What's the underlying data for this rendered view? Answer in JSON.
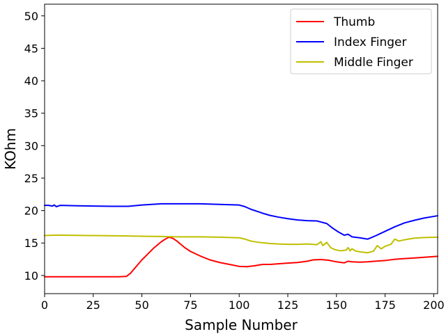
{
  "chart_data": {
    "type": "line",
    "title": "",
    "xlabel": "Sample Number",
    "ylabel": "KOhm",
    "xlim": [
      0,
      202
    ],
    "ylim": [
      7.2,
      51.8
    ],
    "xticks": [
      0,
      25,
      50,
      75,
      100,
      125,
      150,
      175,
      200
    ],
    "yticks": [
      10,
      15,
      20,
      25,
      30,
      35,
      40,
      45,
      50
    ],
    "grid": false,
    "legend": "top-right",
    "series": [
      {
        "name": "Thumb",
        "color": "#ff0000",
        "points": [
          [
            0,
            9.8
          ],
          [
            10,
            9.8
          ],
          [
            20,
            9.8
          ],
          [
            30,
            9.8
          ],
          [
            38,
            9.8
          ],
          [
            42,
            9.85
          ],
          [
            44,
            10.3
          ],
          [
            46,
            11.0
          ],
          [
            48,
            11.7
          ],
          [
            50,
            12.4
          ],
          [
            52,
            13.0
          ],
          [
            54,
            13.6
          ],
          [
            56,
            14.2
          ],
          [
            58,
            14.7
          ],
          [
            60,
            15.2
          ],
          [
            62,
            15.6
          ],
          [
            64,
            15.9
          ],
          [
            66,
            15.7
          ],
          [
            68,
            15.3
          ],
          [
            70,
            14.8
          ],
          [
            72,
            14.3
          ],
          [
            75,
            13.7
          ],
          [
            80,
            13.0
          ],
          [
            85,
            12.4
          ],
          [
            90,
            12.0
          ],
          [
            95,
            11.7
          ],
          [
            100,
            11.4
          ],
          [
            104,
            11.35
          ],
          [
            108,
            11.5
          ],
          [
            112,
            11.7
          ],
          [
            116,
            11.7
          ],
          [
            120,
            11.8
          ],
          [
            125,
            11.9
          ],
          [
            130,
            12.0
          ],
          [
            135,
            12.2
          ],
          [
            138,
            12.4
          ],
          [
            142,
            12.45
          ],
          [
            146,
            12.35
          ],
          [
            150,
            12.1
          ],
          [
            154,
            11.95
          ],
          [
            156,
            12.2
          ],
          [
            158,
            12.1
          ],
          [
            162,
            12.05
          ],
          [
            166,
            12.1
          ],
          [
            170,
            12.2
          ],
          [
            175,
            12.3
          ],
          [
            180,
            12.5
          ],
          [
            185,
            12.6
          ],
          [
            190,
            12.7
          ],
          [
            195,
            12.8
          ],
          [
            202,
            12.95
          ]
        ]
      },
      {
        "name": "Index Finger",
        "color": "#0000ff",
        "points": [
          [
            0,
            20.8
          ],
          [
            2,
            20.8
          ],
          [
            4,
            20.7
          ],
          [
            5,
            20.85
          ],
          [
            6,
            20.6
          ],
          [
            8,
            20.8
          ],
          [
            15,
            20.75
          ],
          [
            25,
            20.7
          ],
          [
            35,
            20.65
          ],
          [
            43,
            20.65
          ],
          [
            50,
            20.85
          ],
          [
            55,
            20.95
          ],
          [
            60,
            21.05
          ],
          [
            65,
            21.05
          ],
          [
            70,
            21.05
          ],
          [
            75,
            21.05
          ],
          [
            80,
            21.05
          ],
          [
            90,
            20.95
          ],
          [
            100,
            20.85
          ],
          [
            103,
            20.6
          ],
          [
            106,
            20.2
          ],
          [
            110,
            19.8
          ],
          [
            113,
            19.5
          ],
          [
            116,
            19.25
          ],
          [
            120,
            19.0
          ],
          [
            125,
            18.75
          ],
          [
            130,
            18.55
          ],
          [
            135,
            18.45
          ],
          [
            140,
            18.4
          ],
          [
            145,
            18.0
          ],
          [
            148,
            17.3
          ],
          [
            151,
            16.7
          ],
          [
            154,
            16.2
          ],
          [
            156,
            16.35
          ],
          [
            158,
            15.95
          ],
          [
            162,
            15.8
          ],
          [
            166,
            15.6
          ],
          [
            170,
            16.1
          ],
          [
            175,
            16.8
          ],
          [
            180,
            17.5
          ],
          [
            185,
            18.1
          ],
          [
            190,
            18.5
          ],
          [
            195,
            18.85
          ],
          [
            202,
            19.2
          ]
        ]
      },
      {
        "name": "Middle Finger",
        "color": "#bfbf00",
        "points": [
          [
            0,
            16.15
          ],
          [
            5,
            16.2
          ],
          [
            10,
            16.2
          ],
          [
            25,
            16.15
          ],
          [
            40,
            16.1
          ],
          [
            50,
            16.05
          ],
          [
            60,
            16.0
          ],
          [
            70,
            15.95
          ],
          [
            80,
            15.95
          ],
          [
            90,
            15.9
          ],
          [
            100,
            15.8
          ],
          [
            103,
            15.6
          ],
          [
            106,
            15.3
          ],
          [
            110,
            15.1
          ],
          [
            115,
            14.95
          ],
          [
            120,
            14.85
          ],
          [
            125,
            14.8
          ],
          [
            130,
            14.8
          ],
          [
            135,
            14.85
          ],
          [
            140,
            14.75
          ],
          [
            142,
            15.2
          ],
          [
            143,
            14.6
          ],
          [
            145,
            15.1
          ],
          [
            147,
            14.3
          ],
          [
            149,
            14.0
          ],
          [
            152,
            13.8
          ],
          [
            155,
            13.9
          ],
          [
            156,
            14.3
          ],
          [
            157,
            13.8
          ],
          [
            158,
            14.1
          ],
          [
            160,
            13.75
          ],
          [
            163,
            13.6
          ],
          [
            166,
            13.5
          ],
          [
            169,
            13.75
          ],
          [
            171,
            14.6
          ],
          [
            173,
            14.1
          ],
          [
            175,
            14.5
          ],
          [
            178,
            14.8
          ],
          [
            180,
            15.6
          ],
          [
            182,
            15.3
          ],
          [
            185,
            15.5
          ],
          [
            190,
            15.75
          ],
          [
            195,
            15.85
          ],
          [
            202,
            15.9
          ]
        ]
      }
    ]
  }
}
